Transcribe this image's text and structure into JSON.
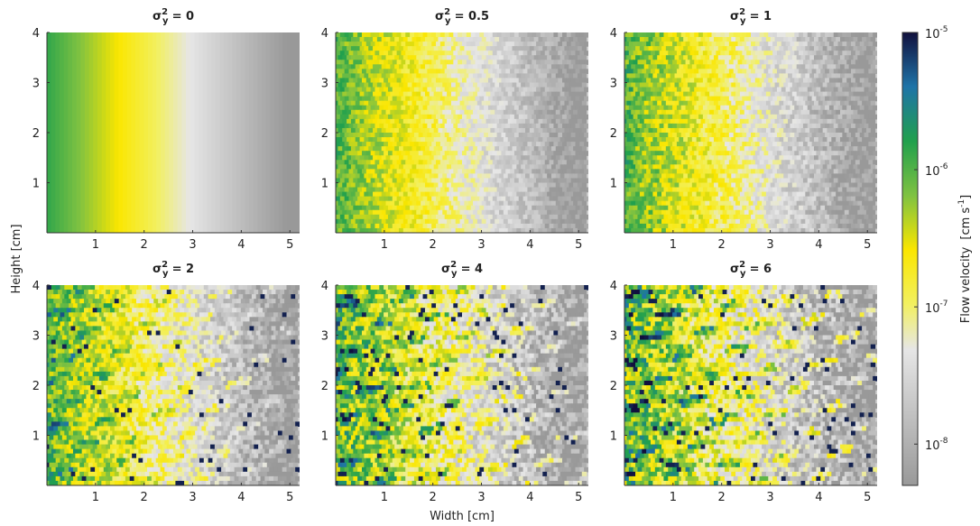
{
  "chart_data": {
    "type": "heatmap",
    "shared": {
      "xlabel": "Width [cm]",
      "ylabel": "Height [cm]",
      "xlim": [
        0,
        5.2
      ],
      "ylim": [
        0,
        4
      ],
      "xticks": [
        1,
        2,
        3,
        4,
        5
      ],
      "yticks": [
        1,
        2,
        3,
        4
      ],
      "x_tick_labels": [
        "1",
        "2",
        "3",
        "4",
        "5"
      ],
      "y_tick_labels": [
        "1",
        "2",
        "3",
        "4"
      ]
    },
    "panels": [
      {
        "title_base": "σ",
        "title_sub": "y",
        "title_sup": "2",
        "title_value": "= 0",
        "heterogeneity": 0
      },
      {
        "title_base": "σ",
        "title_sub": "y",
        "title_sup": "2",
        "title_value": "= 0.5",
        "heterogeneity": 0.5
      },
      {
        "title_base": "σ",
        "title_sub": "y",
        "title_sup": "2",
        "title_value": "= 1",
        "heterogeneity": 1
      },
      {
        "title_base": "σ",
        "title_sub": "y",
        "title_sup": "2",
        "title_value": "= 2",
        "heterogeneity": 2
      },
      {
        "title_base": "σ",
        "title_sub": "y",
        "title_sup": "2",
        "title_value": "= 4",
        "heterogeneity": 4
      },
      {
        "title_base": "σ",
        "title_sub": "y",
        "title_sup": "2",
        "title_value": "= 6",
        "heterogeneity": 6
      }
    ],
    "colorbar": {
      "label": "Flow velocity",
      "unit_base": "[cm s",
      "unit_sup": "-1",
      "unit_end": "]",
      "scale": "log",
      "range": [
        5e-09,
        1e-05
      ],
      "ticks": [
        1e-05,
        1e-06,
        1e-07,
        1e-08
      ],
      "tick_bases": [
        "10",
        "10",
        "10",
        "10"
      ],
      "tick_exponents": [
        "-5",
        "-6",
        "-7",
        "-8"
      ],
      "colormap": [
        "#999999",
        "#e6e6e6",
        "#f5ef45",
        "#fae600",
        "#7fc241",
        "#21a04d",
        "#1f74a8",
        "#11103d"
      ]
    }
  }
}
